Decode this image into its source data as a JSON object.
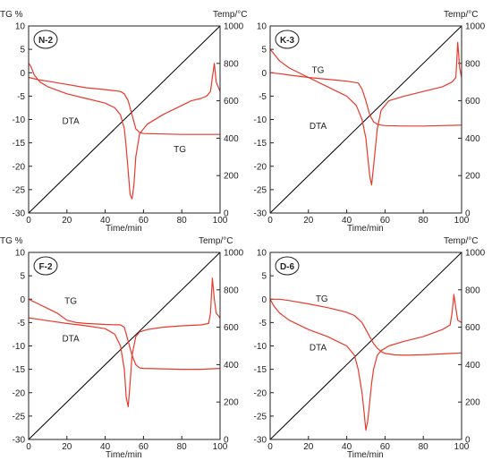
{
  "chart_data": [
    {
      "type": "line",
      "panel_label": "N-2",
      "ylabel_left": "TG %",
      "ylabel_right": "Temp/°C",
      "xlabel": "Time/min",
      "xlim": [
        0,
        100
      ],
      "ylim_left": [
        -30,
        10
      ],
      "ylim_right": [
        0,
        1000
      ],
      "x_ticks": [
        0,
        20,
        40,
        60,
        80,
        100
      ],
      "y_left_ticks": [
        10,
        5,
        0,
        -5,
        -10,
        -15,
        -20,
        -25,
        -30
      ],
      "y_right_ticks": [
        1000,
        800,
        600,
        400,
        200,
        0
      ],
      "grid": false,
      "curve_labels": [
        {
          "text": "DTA",
          "x": 22,
          "y": -11
        },
        {
          "text": "TG",
          "x": 79,
          "y": -17
        }
      ],
      "series": [
        {
          "key": "temp",
          "color": "#000000",
          "x": [
            0,
            100
          ],
          "y": [
            -30,
            10
          ]
        },
        {
          "key": "tg",
          "color": "#e8392b",
          "x": [
            0,
            2,
            5,
            10,
            20,
            30,
            40,
            44,
            48,
            50,
            52,
            54,
            56,
            58,
            60,
            70,
            80,
            90,
            100
          ],
          "y": [
            -1,
            -1.2,
            -1.5,
            -1.8,
            -2.5,
            -3.2,
            -3.6,
            -3.8,
            -4.0,
            -4.5,
            -6,
            -9,
            -12,
            -12.8,
            -13,
            -13.1,
            -13.2,
            -13.2,
            -13.2
          ]
        },
        {
          "key": "dta",
          "color": "#e8392b",
          "x": [
            0,
            1,
            3,
            6,
            10,
            20,
            30,
            40,
            45,
            48,
            50,
            51,
            52,
            53,
            54,
            55,
            56,
            58,
            62,
            70,
            80,
            85,
            90,
            93,
            95,
            96,
            97,
            98,
            100
          ],
          "y": [
            2,
            1.5,
            -0.5,
            -2,
            -3,
            -4.5,
            -5.5,
            -6.5,
            -7.5,
            -9,
            -12,
            -16,
            -21,
            -26,
            -27,
            -24,
            -18,
            -13,
            -11,
            -9,
            -7,
            -6,
            -5.5,
            -5,
            -4,
            -1,
            2,
            -2,
            -4
          ]
        }
      ]
    },
    {
      "type": "line",
      "panel_label": "K-3",
      "ylabel_right": "Temp/°C",
      "xlabel": "Time/min",
      "xlim": [
        0,
        100
      ],
      "ylim_left": [
        -30,
        10
      ],
      "ylim_right": [
        0,
        1000
      ],
      "x_ticks": [
        0,
        20,
        40,
        60,
        80,
        100
      ],
      "y_left_ticks": [
        10,
        5,
        0,
        -5,
        -10,
        -15,
        -20,
        -25,
        -30
      ],
      "y_right_ticks": [
        1000,
        800,
        600,
        400,
        200,
        0
      ],
      "grid": false,
      "curve_labels": [
        {
          "text": "TG",
          "x": 25,
          "y": 0
        },
        {
          "text": "DTA",
          "x": 25,
          "y": -12
        }
      ],
      "series": [
        {
          "key": "temp",
          "color": "#000000",
          "x": [
            0,
            100
          ],
          "y": [
            -30,
            10
          ]
        },
        {
          "key": "tg",
          "color": "#e8392b",
          "x": [
            0,
            5,
            10,
            20,
            30,
            40,
            46,
            48,
            50,
            52,
            54,
            56,
            58,
            60,
            70,
            80,
            90,
            100
          ],
          "y": [
            0,
            -0.2,
            -0.5,
            -1,
            -1.4,
            -1.8,
            -2.2,
            -3.5,
            -6,
            -9,
            -10.5,
            -11,
            -11.2,
            -11.3,
            -11.4,
            -11.4,
            -11.3,
            -11.2
          ]
        },
        {
          "key": "dta",
          "color": "#e8392b",
          "x": [
            0,
            2,
            5,
            10,
            20,
            30,
            40,
            45,
            48,
            50,
            51,
            52,
            53,
            54,
            56,
            58,
            62,
            70,
            80,
            90,
            95,
            97,
            98,
            99,
            100
          ],
          "y": [
            5,
            4,
            2.5,
            1,
            -1,
            -3,
            -5,
            -7,
            -10,
            -14,
            -18,
            -22,
            -24,
            -20,
            -12,
            -8,
            -6,
            -5,
            -4,
            -3,
            -2,
            -1,
            6.5,
            1,
            -1
          ]
        }
      ]
    },
    {
      "type": "line",
      "panel_label": "F-2",
      "ylabel_left": "TG %",
      "ylabel_right": "Temp/°C",
      "xlabel": "Time/min",
      "xlim": [
        0,
        100
      ],
      "ylim_left": [
        -30,
        10
      ],
      "ylim_right": [
        0,
        1000
      ],
      "x_ticks": [
        0,
        20,
        40,
        60,
        80,
        100
      ],
      "y_left_ticks": [
        10,
        5,
        0,
        -5,
        -10,
        -15,
        -20,
        -25,
        -30
      ],
      "y_right_ticks": [
        1000,
        800,
        600,
        400,
        200,
        0
      ],
      "grid": false,
      "curve_labels": [
        {
          "text": "TG",
          "x": 22,
          "y": -1
        },
        {
          "text": "DTA",
          "x": 22,
          "y": -9
        }
      ],
      "series": [
        {
          "key": "temp",
          "color": "#000000",
          "x": [
            0,
            100
          ],
          "y": [
            -30,
            10
          ]
        },
        {
          "key": "tg",
          "color": "#e8392b",
          "x": [
            0,
            5,
            10,
            15,
            20,
            25,
            30,
            40,
            48,
            50,
            52,
            54,
            56,
            58,
            60,
            70,
            80,
            90,
            100
          ],
          "y": [
            0,
            -1,
            -2,
            -3,
            -4.5,
            -5,
            -5.2,
            -5.4,
            -5.5,
            -6,
            -9,
            -12,
            -14,
            -14.7,
            -14.8,
            -14.9,
            -15,
            -15,
            -14.8
          ]
        },
        {
          "key": "dta",
          "color": "#e8392b",
          "x": [
            0,
            5,
            10,
            20,
            30,
            40,
            45,
            48,
            50,
            51,
            52,
            53,
            54,
            56,
            58,
            62,
            70,
            80,
            90,
            94,
            95,
            96,
            97,
            98,
            100
          ],
          "y": [
            -4,
            -4.3,
            -4.6,
            -5.2,
            -5.7,
            -6.3,
            -7.5,
            -10,
            -15,
            -21,
            -23,
            -18,
            -12,
            -8,
            -7,
            -6.5,
            -6,
            -5.7,
            -5.5,
            -5.2,
            -3,
            4.5,
            0,
            -3,
            -4
          ]
        }
      ]
    },
    {
      "type": "line",
      "panel_label": "D-6",
      "ylabel_right": "Temp/°C",
      "xlabel": "Time/min",
      "xlim": [
        0,
        100
      ],
      "ylim_left": [
        -30,
        10
      ],
      "ylim_right": [
        0,
        1000
      ],
      "x_ticks": [
        0,
        20,
        40,
        60,
        80,
        100
      ],
      "y_left_ticks": [
        10,
        5,
        0,
        -5,
        -10,
        -15,
        -20,
        -25,
        -30
      ],
      "y_right_ticks": [
        1000,
        800,
        600,
        400,
        200,
        0
      ],
      "grid": false,
      "curve_labels": [
        {
          "text": "TG",
          "x": 27,
          "y": -0.5
        },
        {
          "text": "DTA",
          "x": 25,
          "y": -11
        }
      ],
      "series": [
        {
          "key": "temp",
          "color": "#000000",
          "x": [
            0,
            100
          ],
          "y": [
            -30,
            10
          ]
        },
        {
          "key": "tg",
          "color": "#e8392b",
          "x": [
            0,
            5,
            10,
            20,
            30,
            40,
            44,
            48,
            50,
            52,
            54,
            56,
            58,
            60,
            65,
            70,
            80,
            90,
            100
          ],
          "y": [
            0,
            0,
            -0.3,
            -1,
            -1.8,
            -2.8,
            -3.5,
            -5,
            -6.5,
            -8,
            -9.5,
            -10.5,
            -11.2,
            -11.6,
            -11.9,
            -12,
            -11.9,
            -11.7,
            -11.5
          ]
        },
        {
          "key": "dta",
          "color": "#e8392b",
          "x": [
            0,
            2,
            5,
            10,
            20,
            30,
            40,
            44,
            46,
            48,
            49,
            50,
            51,
            52,
            53,
            54,
            56,
            58,
            62,
            70,
            80,
            90,
            94,
            95,
            96,
            97,
            98,
            100
          ],
          "y": [
            0,
            -1.5,
            -3,
            -4.5,
            -6.5,
            -8,
            -10,
            -12,
            -15,
            -20,
            -24,
            -28,
            -26,
            -22,
            -18,
            -15,
            -12,
            -11,
            -10,
            -9,
            -8,
            -6.5,
            -5.5,
            -3,
            1,
            -2,
            -4.5,
            -5
          ]
        }
      ]
    }
  ]
}
